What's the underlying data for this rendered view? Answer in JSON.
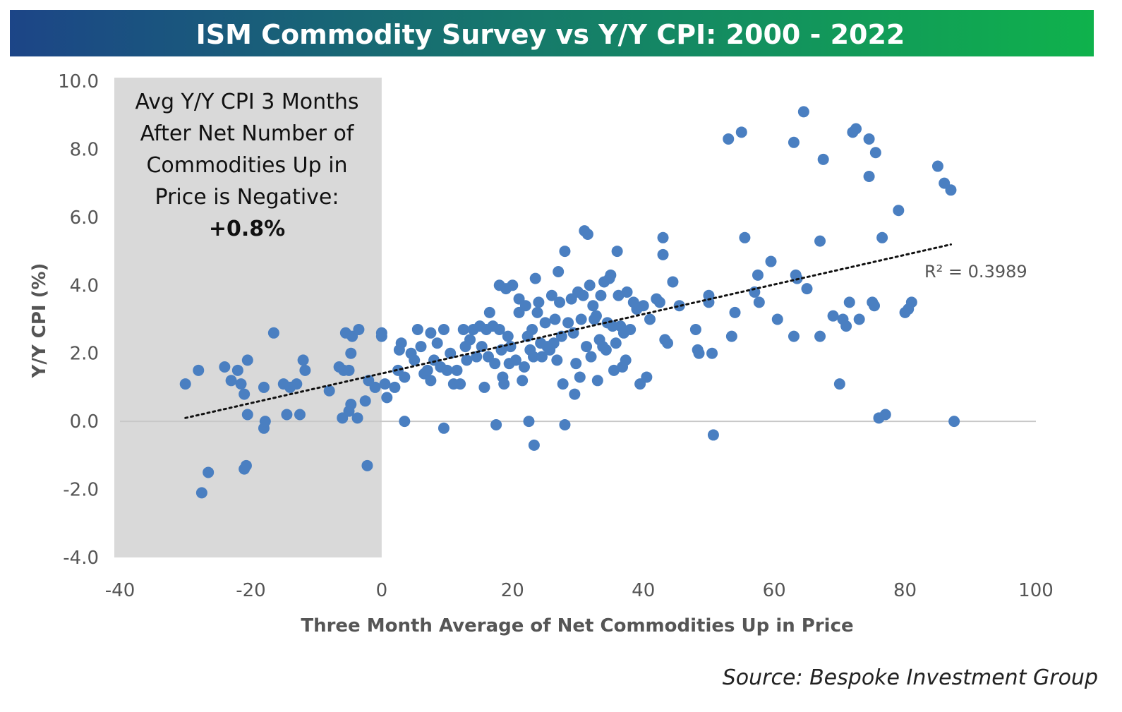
{
  "title": "ISM Commodity Survey vs Y/Y CPI: 2000 - 2022",
  "source": "Source: Bespoke Investment Group",
  "colors": {
    "title_gradient_start": "#1c4587",
    "title_gradient_end": "#0fb24c",
    "points": "#4a7fc1",
    "shaded_region": "#d9d9d9",
    "gridline": "#c8c8c8",
    "trendline": "#111111"
  },
  "annotation": {
    "lines": [
      "Avg Y/Y CPI 3 Months",
      "After Net Number of",
      "Commodities Up in",
      "Price is Negative:"
    ],
    "value": "+0.8%"
  },
  "chart_data": {
    "type": "scatter",
    "xlabel": "Three Month Average of Net Commodities Up in Price",
    "ylabel": "Y/Y CPI (%)",
    "xlim": [
      -40,
      100
    ],
    "ylim": [
      -4,
      10
    ],
    "x_ticks": [
      "-40",
      "-20",
      "0",
      "20",
      "40",
      "60",
      "80",
      "100"
    ],
    "y_ticks": [
      "10.0",
      "8.0",
      "6.0",
      "4.0",
      "2.0",
      "0.0",
      "-2.0",
      "-4.0"
    ],
    "grid": "zero-line only",
    "shaded_region_x": [
      -40,
      0
    ],
    "trendline": {
      "type": "linear",
      "x": [
        -30,
        87
      ],
      "y": [
        0.1,
        5.2
      ],
      "label": "R² = 0.3989"
    },
    "points": [
      [
        -30,
        1.1
      ],
      [
        -28,
        1.5
      ],
      [
        -27.5,
        -2.1
      ],
      [
        -26.5,
        -1.5
      ],
      [
        -24,
        1.6
      ],
      [
        -23,
        1.2
      ],
      [
        -22,
        1.5
      ],
      [
        -21.5,
        1.1
      ],
      [
        -21,
        0.8
      ],
      [
        -21,
        -1.4
      ],
      [
        -20.7,
        -1.3
      ],
      [
        -20.5,
        0.2
      ],
      [
        -20.5,
        1.8
      ],
      [
        -18,
        1.0
      ],
      [
        -18,
        -0.2
      ],
      [
        -17.8,
        0.0
      ],
      [
        -16.5,
        2.6
      ],
      [
        -15,
        1.1
      ],
      [
        -14.5,
        0.2
      ],
      [
        -14,
        1.0
      ],
      [
        -13,
        1.1
      ],
      [
        -12.5,
        0.2
      ],
      [
        -12,
        1.8
      ],
      [
        -11.7,
        1.5
      ],
      [
        -8,
        0.9
      ],
      [
        -6.5,
        1.6
      ],
      [
        -6,
        0.1
      ],
      [
        -5.8,
        1.5
      ],
      [
        -5.5,
        2.6
      ],
      [
        -5,
        1.5
      ],
      [
        -5,
        0.3
      ],
      [
        -4.7,
        2.0
      ],
      [
        -4.7,
        0.5
      ],
      [
        -4.5,
        2.5
      ],
      [
        -3.7,
        0.1
      ],
      [
        -3.5,
        2.7
      ],
      [
        -2.5,
        0.6
      ],
      [
        -2.2,
        -1.3
      ],
      [
        -2,
        1.2
      ],
      [
        -1,
        1.0
      ],
      [
        0,
        2.5
      ],
      [
        0,
        2.6
      ],
      [
        0.5,
        1.1
      ],
      [
        0.8,
        0.7
      ],
      [
        2,
        1.0
      ],
      [
        2.5,
        1.5
      ],
      [
        2.7,
        2.1
      ],
      [
        3,
        2.3
      ],
      [
        3.5,
        1.3
      ],
      [
        3.5,
        0.0
      ],
      [
        4.5,
        2.0
      ],
      [
        5,
        1.8
      ],
      [
        5.5,
        2.7
      ],
      [
        6,
        2.2
      ],
      [
        6.5,
        1.4
      ],
      [
        7,
        1.5
      ],
      [
        7.5,
        2.6
      ],
      [
        7.5,
        1.2
      ],
      [
        8,
        1.8
      ],
      [
        8.5,
        2.3
      ],
      [
        9,
        1.6
      ],
      [
        9.5,
        2.7
      ],
      [
        9.5,
        -0.2
      ],
      [
        10,
        1.5
      ],
      [
        10.5,
        2.0
      ],
      [
        11,
        1.1
      ],
      [
        11.5,
        1.5
      ],
      [
        12,
        1.1
      ],
      [
        12.5,
        2.7
      ],
      [
        12.8,
        2.2
      ],
      [
        13,
        1.8
      ],
      [
        13.5,
        2.4
      ],
      [
        14,
        2.7
      ],
      [
        14.5,
        1.9
      ],
      [
        15,
        2.8
      ],
      [
        15.3,
        2.2
      ],
      [
        15.7,
        1.0
      ],
      [
        16,
        2.7
      ],
      [
        16.3,
        1.9
      ],
      [
        16.5,
        3.2
      ],
      [
        17,
        2.8
      ],
      [
        17.3,
        1.7
      ],
      [
        17.5,
        -0.1
      ],
      [
        18,
        4.0
      ],
      [
        18,
        2.7
      ],
      [
        18.3,
        2.1
      ],
      [
        18.5,
        1.3
      ],
      [
        18.7,
        1.1
      ],
      [
        19,
        3.9
      ],
      [
        19.3,
        2.5
      ],
      [
        19.5,
        1.7
      ],
      [
        19.7,
        2.2
      ],
      [
        20,
        4.0
      ],
      [
        20.5,
        1.8
      ],
      [
        21,
        3.6
      ],
      [
        21,
        3.2
      ],
      [
        21.5,
        1.2
      ],
      [
        21.8,
        1.6
      ],
      [
        22,
        3.4
      ],
      [
        22.3,
        2.5
      ],
      [
        22.5,
        0.0
      ],
      [
        22.7,
        2.1
      ],
      [
        23,
        2.7
      ],
      [
        23.2,
        1.9
      ],
      [
        23.3,
        -0.7
      ],
      [
        23.5,
        4.2
      ],
      [
        23.8,
        3.2
      ],
      [
        24,
        3.5
      ],
      [
        24.3,
        2.3
      ],
      [
        24.5,
        1.9
      ],
      [
        25,
        2.9
      ],
      [
        25.3,
        2.2
      ],
      [
        25.7,
        2.1
      ],
      [
        26,
        3.7
      ],
      [
        26.3,
        2.3
      ],
      [
        26.5,
        3.0
      ],
      [
        26.8,
        1.8
      ],
      [
        27,
        4.4
      ],
      [
        27.2,
        3.5
      ],
      [
        27.5,
        2.5
      ],
      [
        27.7,
        1.1
      ],
      [
        28,
        5.0
      ],
      [
        28,
        -0.1
      ],
      [
        28.5,
        2.9
      ],
      [
        29,
        3.6
      ],
      [
        29.3,
        2.6
      ],
      [
        29.5,
        0.8
      ],
      [
        29.7,
        1.7
      ],
      [
        30,
        3.8
      ],
      [
        30.3,
        1.3
      ],
      [
        30.5,
        3.0
      ],
      [
        30.8,
        3.7
      ],
      [
        31,
        5.6
      ],
      [
        31.3,
        2.2
      ],
      [
        31.5,
        5.5
      ],
      [
        31.8,
        4.0
      ],
      [
        32,
        1.9
      ],
      [
        32.3,
        3.4
      ],
      [
        32.5,
        3.0
      ],
      [
        32.8,
        3.1
      ],
      [
        33,
        1.2
      ],
      [
        33.3,
        2.4
      ],
      [
        33.5,
        3.7
      ],
      [
        33.8,
        2.2
      ],
      [
        34,
        4.1
      ],
      [
        34.3,
        2.1
      ],
      [
        34.5,
        2.9
      ],
      [
        34.8,
        4.2
      ],
      [
        35,
        4.3
      ],
      [
        35.3,
        2.8
      ],
      [
        35.5,
        1.5
      ],
      [
        35.8,
        2.3
      ],
      [
        36,
        5.0
      ],
      [
        36.2,
        3.7
      ],
      [
        36.5,
        2.8
      ],
      [
        36.8,
        1.6
      ],
      [
        37,
        2.6
      ],
      [
        37.3,
        1.8
      ],
      [
        37.5,
        3.8
      ],
      [
        38,
        2.7
      ],
      [
        38.5,
        3.5
      ],
      [
        39,
        3.3
      ],
      [
        39.5,
        1.1
      ],
      [
        40,
        3.4
      ],
      [
        40.5,
        1.3
      ],
      [
        41,
        3.0
      ],
      [
        42,
        3.6
      ],
      [
        42.5,
        3.5
      ],
      [
        43,
        5.4
      ],
      [
        43,
        4.9
      ],
      [
        43.3,
        2.4
      ],
      [
        43.7,
        2.3
      ],
      [
        44.5,
        4.1
      ],
      [
        45.5,
        3.4
      ],
      [
        48,
        2.7
      ],
      [
        48.3,
        2.1
      ],
      [
        48.5,
        2.0
      ],
      [
        50,
        3.7
      ],
      [
        50,
        3.5
      ],
      [
        50.5,
        2.0
      ],
      [
        50.7,
        -0.4
      ],
      [
        53,
        8.3
      ],
      [
        53.5,
        2.5
      ],
      [
        54,
        3.2
      ],
      [
        55,
        8.5
      ],
      [
        55.5,
        5.4
      ],
      [
        57,
        3.8
      ],
      [
        57.5,
        4.3
      ],
      [
        57.7,
        3.5
      ],
      [
        59.5,
        4.7
      ],
      [
        60.5,
        3.0
      ],
      [
        63,
        8.2
      ],
      [
        63,
        2.5
      ],
      [
        63.3,
        4.3
      ],
      [
        63.5,
        4.2
      ],
      [
        64.5,
        9.1
      ],
      [
        65,
        3.9
      ],
      [
        67,
        5.3
      ],
      [
        67,
        2.5
      ],
      [
        67.5,
        7.7
      ],
      [
        69,
        3.1
      ],
      [
        70,
        1.1
      ],
      [
        70.5,
        3.0
      ],
      [
        71,
        2.8
      ],
      [
        71.5,
        3.5
      ],
      [
        72,
        8.5
      ],
      [
        72.5,
        8.6
      ],
      [
        73,
        3.0
      ],
      [
        74.5,
        8.3
      ],
      [
        74.5,
        7.2
      ],
      [
        75,
        3.5
      ],
      [
        75.3,
        3.4
      ],
      [
        75.5,
        7.9
      ],
      [
        76,
        0.1
      ],
      [
        76.5,
        5.4
      ],
      [
        77,
        0.2
      ],
      [
        79,
        6.2
      ],
      [
        80,
        3.2
      ],
      [
        80.5,
        3.3
      ],
      [
        81,
        3.5
      ],
      [
        85,
        7.5
      ],
      [
        86,
        7.0
      ],
      [
        87,
        6.8
      ],
      [
        87.5,
        0.0
      ]
    ]
  }
}
